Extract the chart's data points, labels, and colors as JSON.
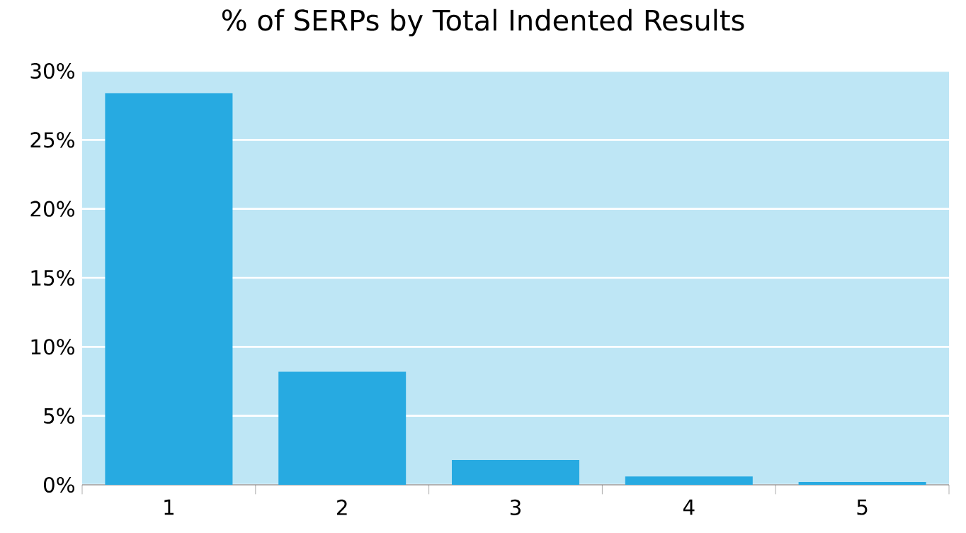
{
  "chart_data": {
    "type": "bar",
    "title": "% of SERPs by Total Indented Results",
    "categories": [
      "1",
      "2",
      "3",
      "4",
      "5"
    ],
    "values": [
      28.4,
      8.2,
      1.8,
      0.6,
      0.2
    ],
    "color": "#27aae1",
    "ylim": [
      0,
      30
    ],
    "yticks": [
      {
        "value": 0,
        "label": "0%"
      },
      {
        "value": 5,
        "label": "5%"
      },
      {
        "value": 10,
        "label": "10%"
      },
      {
        "value": 15,
        "label": "15%"
      },
      {
        "value": 20,
        "label": "20%"
      },
      {
        "value": 25,
        "label": "25%"
      },
      {
        "value": 30,
        "label": "30%"
      }
    ],
    "grid": "y"
  }
}
